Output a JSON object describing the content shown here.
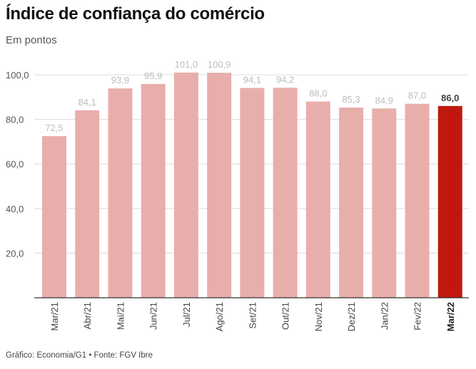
{
  "title": "Índice de confiança do comércio",
  "subtitle": "Em pontos",
  "source": "Gráfico: Economia/G1 • Fonte: FGV Ibre",
  "colors": {
    "bar": "#e8aeab",
    "highlight": "#c0180e",
    "grid": "#dcdcdc",
    "axis": "#333333"
  },
  "chart_data": {
    "type": "bar",
    "title": "Índice de confiança do comércio",
    "subtitle": "Em pontos",
    "categories": [
      "Mar/21",
      "Abr/21",
      "Mai/21",
      "Jun/21",
      "Jul/21",
      "Ago/21",
      "Set/21",
      "Out/21",
      "Nov/21",
      "Dez/21",
      "Jan/22",
      "Fev/22",
      "Mar/22"
    ],
    "values": [
      72.5,
      84.1,
      93.9,
      95.9,
      101.0,
      100.9,
      94.1,
      94.2,
      88.0,
      85.3,
      84.9,
      87.0,
      86.0
    ],
    "value_labels": [
      "72,5",
      "84,1",
      "93,9",
      "95,9",
      "101,0",
      "100,9",
      "94,1",
      "94,2",
      "88,0",
      "85,3",
      "84,9",
      "87,0",
      "86,0"
    ],
    "highlight_index": 12,
    "ylim": [
      0,
      100
    ],
    "yticks": [
      20,
      40,
      60,
      80,
      100
    ],
    "ytick_labels": [
      "20,0",
      "40,0",
      "60,0",
      "80,0",
      "100,0"
    ],
    "grid": true,
    "xlabel": "",
    "ylabel": ""
  }
}
